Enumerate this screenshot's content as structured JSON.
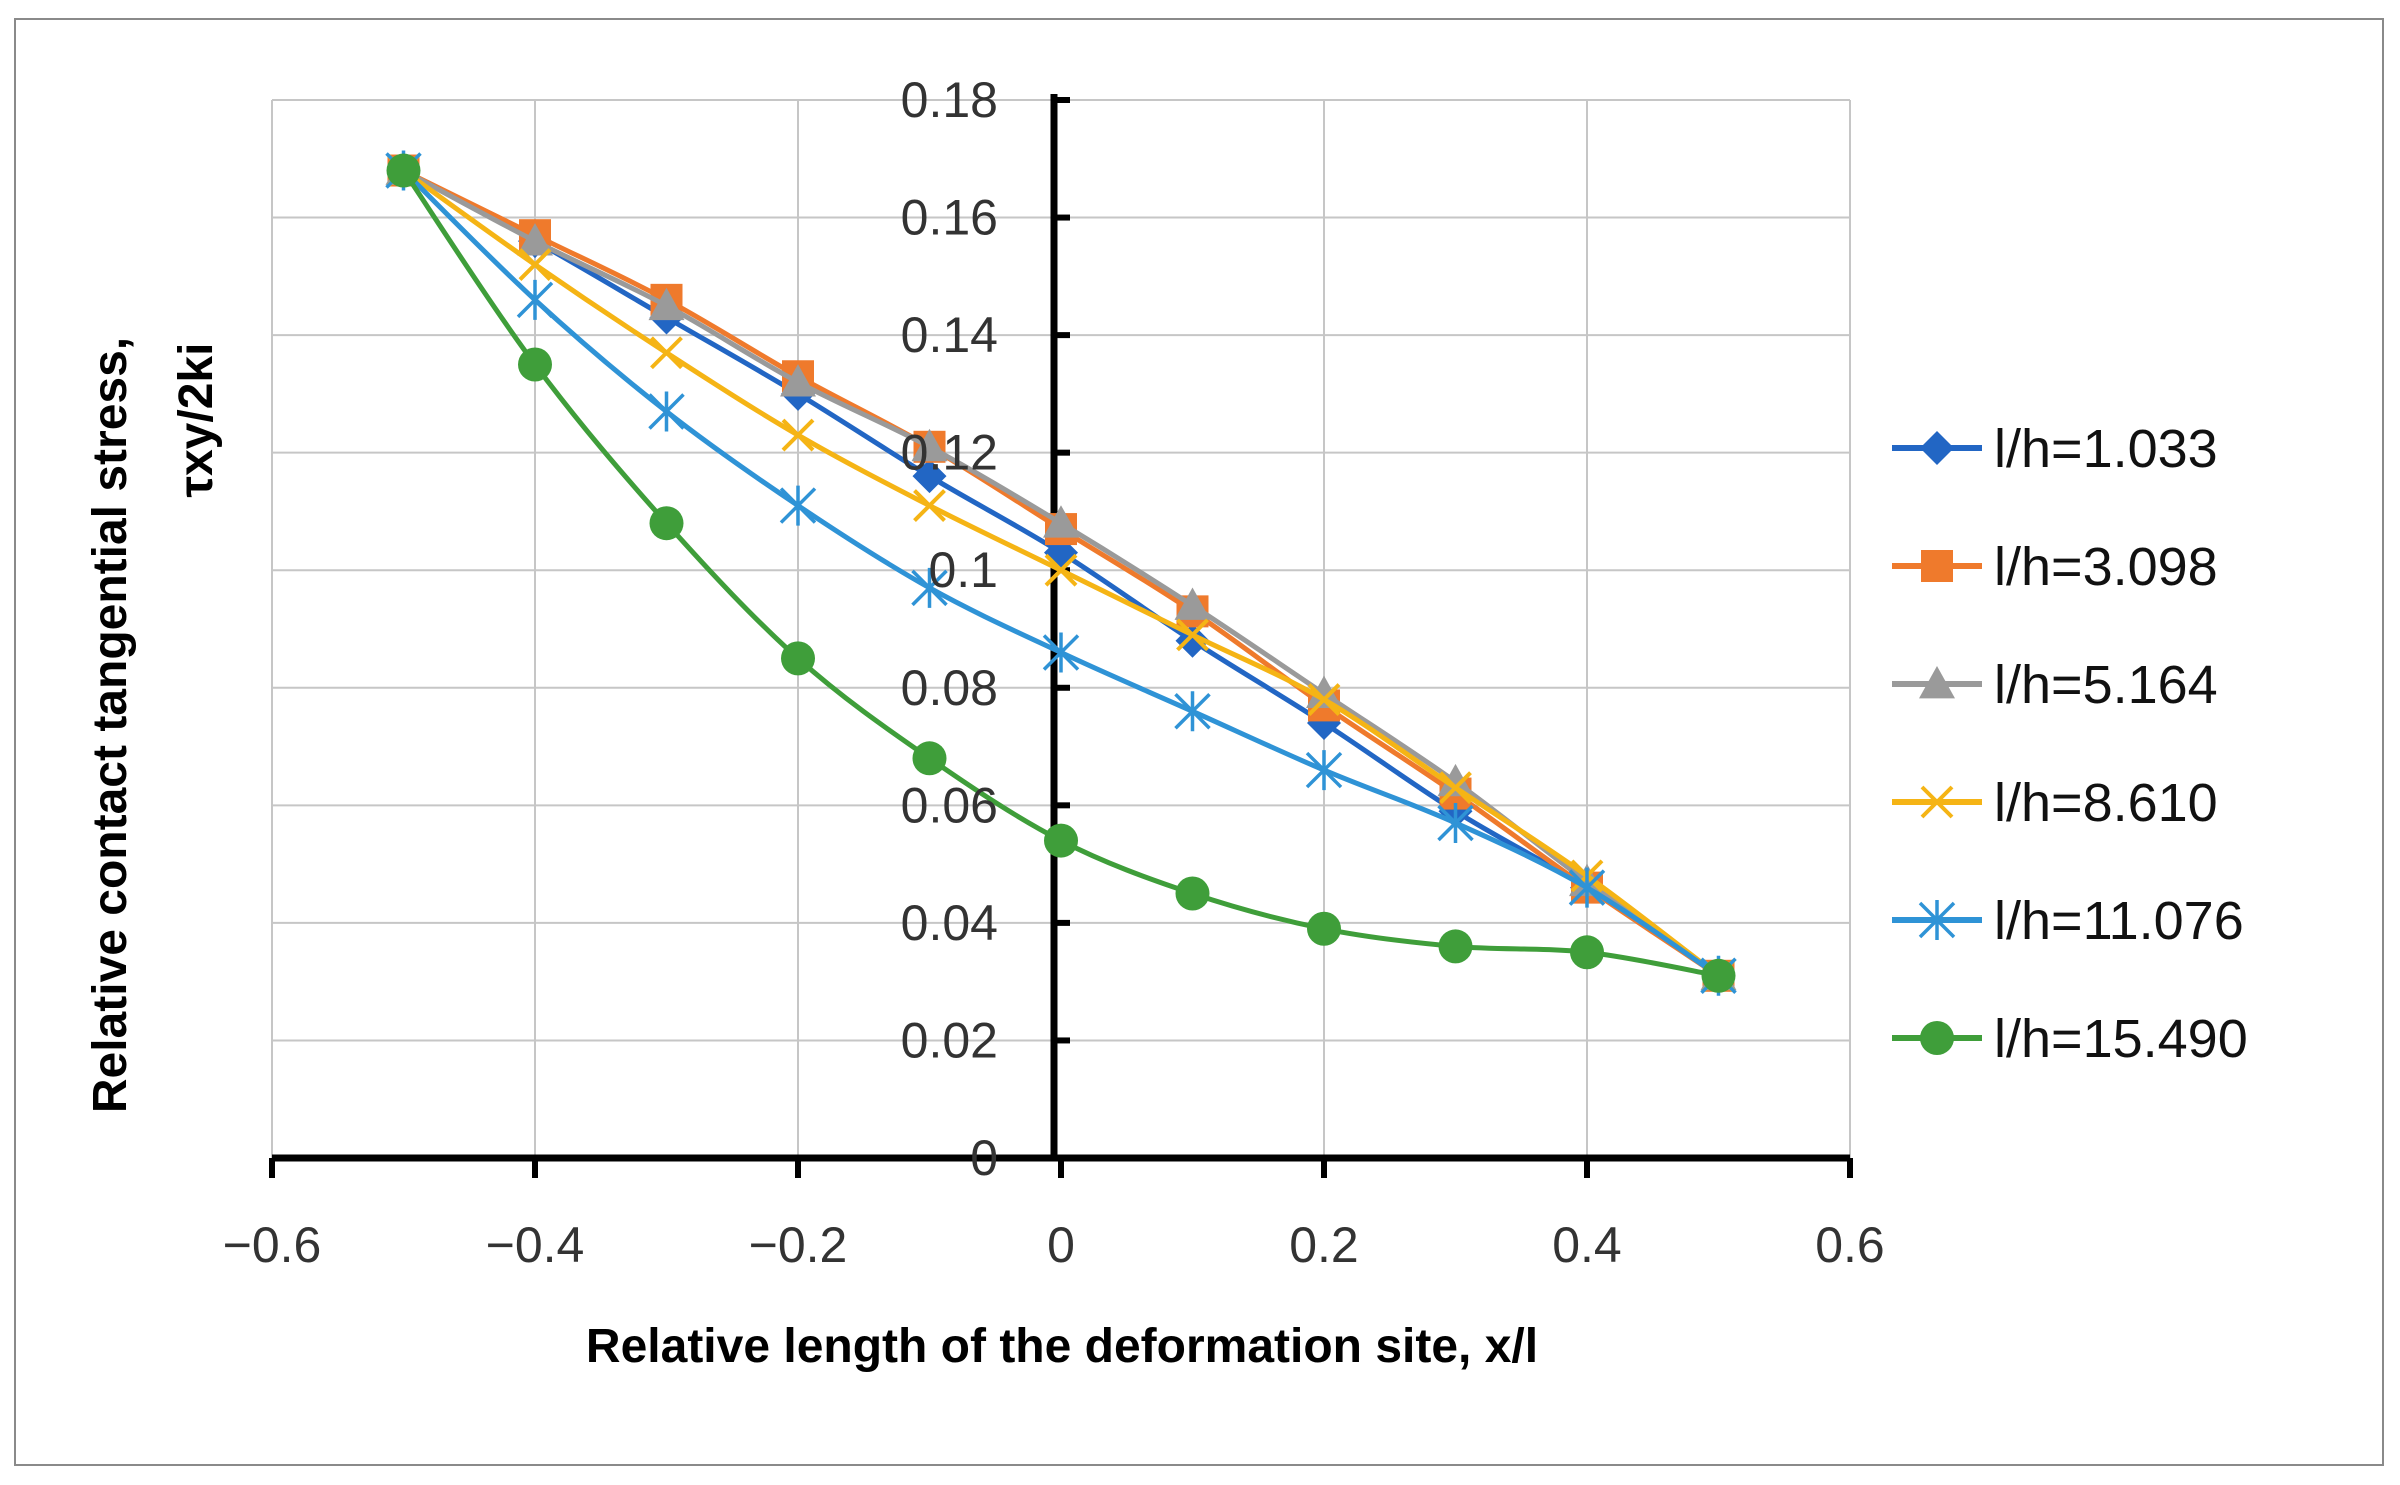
{
  "chart_data": {
    "type": "line",
    "title": "",
    "xlabel": "Relative length of the deformation site, x/l",
    "ylabel_line1": "Relative contact tangential stress,",
    "ylabel_line2": "τxy/2ki",
    "xlim": [
      -0.6,
      0.6
    ],
    "ylim": [
      0,
      0.18
    ],
    "x_ticks": [
      -0.6,
      -0.4,
      -0.2,
      0,
      0.2,
      0.4,
      0.6
    ],
    "x_tick_labels": [
      "−0.6",
      "−0.4",
      "−0.2",
      "0",
      "0.2",
      "0.4",
      "0.6"
    ],
    "y_ticks": [
      0,
      0.02,
      0.04,
      0.06,
      0.08,
      0.1,
      0.12,
      0.14,
      0.16,
      0.18
    ],
    "y_tick_labels": [
      "0",
      "0.02",
      "0.04",
      "0.06",
      "0.08",
      "0.1",
      "0.12",
      "0.14",
      "0.16",
      "0.18"
    ],
    "grid": true,
    "legend_position": "right",
    "x": [
      -0.5,
      -0.4,
      -0.3,
      -0.2,
      -0.1,
      0,
      0.1,
      0.2,
      0.3,
      0.4,
      0.5
    ],
    "series": [
      {
        "name": "l/h=1.033",
        "marker": "diamond",
        "color": "#2266c4",
        "values": [
          0.168,
          0.156,
          0.143,
          0.13,
          0.116,
          0.103,
          0.088,
          0.074,
          0.059,
          0.046,
          0.031
        ]
      },
      {
        "name": "l/h=3.098",
        "marker": "square",
        "color": "#ef7a2c",
        "values": [
          0.168,
          0.157,
          0.146,
          0.133,
          0.121,
          0.107,
          0.093,
          0.077,
          0.062,
          0.046,
          0.031
        ]
      },
      {
        "name": "l/h=5.164",
        "marker": "triangle",
        "color": "#9a9a9a",
        "values": [
          0.168,
          0.156,
          0.145,
          0.132,
          0.121,
          0.108,
          0.094,
          0.079,
          0.064,
          0.047,
          0.031
        ]
      },
      {
        "name": "l/h=8.610",
        "marker": "x",
        "color": "#f5b415",
        "values": [
          0.168,
          0.152,
          0.137,
          0.123,
          0.111,
          0.1,
          0.089,
          0.078,
          0.063,
          0.048,
          0.031
        ]
      },
      {
        "name": "l/h=11.076",
        "marker": "star",
        "color": "#2f93d6",
        "values": [
          0.168,
          0.146,
          0.127,
          0.111,
          0.097,
          0.086,
          0.076,
          0.066,
          0.057,
          0.046,
          0.031
        ]
      },
      {
        "name": "l/h=15.490",
        "marker": "circle",
        "color": "#3f9e3a",
        "values": [
          0.168,
          0.135,
          0.108,
          0.085,
          0.068,
          0.054,
          0.045,
          0.039,
          0.036,
          0.035,
          0.031
        ]
      }
    ]
  }
}
